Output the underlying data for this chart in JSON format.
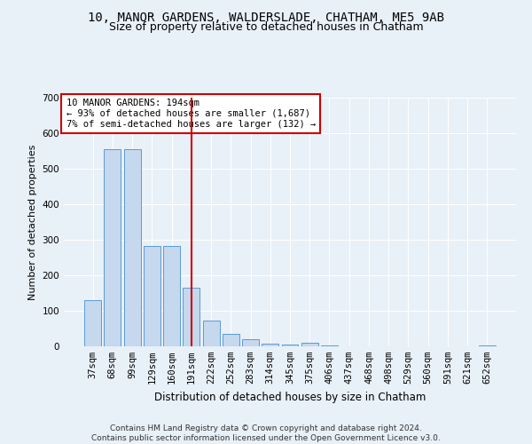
{
  "title1": "10, MANOR GARDENS, WALDERSLADE, CHATHAM, ME5 9AB",
  "title2": "Size of property relative to detached houses in Chatham",
  "xlabel": "Distribution of detached houses by size in Chatham",
  "ylabel": "Number of detached properties",
  "categories": [
    "37sqm",
    "68sqm",
    "99sqm",
    "129sqm",
    "160sqm",
    "191sqm",
    "222sqm",
    "252sqm",
    "283sqm",
    "314sqm",
    "345sqm",
    "375sqm",
    "406sqm",
    "437sqm",
    "468sqm",
    "498sqm",
    "529sqm",
    "560sqm",
    "591sqm",
    "621sqm",
    "652sqm"
  ],
  "values": [
    130,
    555,
    555,
    283,
    283,
    165,
    73,
    35,
    20,
    7,
    5,
    10,
    3,
    0,
    0,
    0,
    0,
    0,
    0,
    0,
    2
  ],
  "bar_color": "#c5d8ed",
  "bar_edge_color": "#5b9bd5",
  "vline_color": "#cc0000",
  "annotation_text": "10 MANOR GARDENS: 194sqm\n← 93% of detached houses are smaller (1,687)\n7% of semi-detached houses are larger (132) →",
  "annotation_box_color": "#ffffff",
  "annotation_box_edge_color": "#cc0000",
  "ylim": [
    0,
    700
  ],
  "yticks": [
    0,
    100,
    200,
    300,
    400,
    500,
    600,
    700
  ],
  "footer": "Contains HM Land Registry data © Crown copyright and database right 2024.\nContains public sector information licensed under the Open Government Licence v3.0.",
  "bg_color": "#e8f0f8",
  "grid_color": "#ffffff",
  "title1_fontsize": 10,
  "title2_fontsize": 9,
  "xlabel_fontsize": 8.5,
  "ylabel_fontsize": 8,
  "tick_fontsize": 7.5,
  "footer_fontsize": 6.5,
  "annot_fontsize": 7.5
}
